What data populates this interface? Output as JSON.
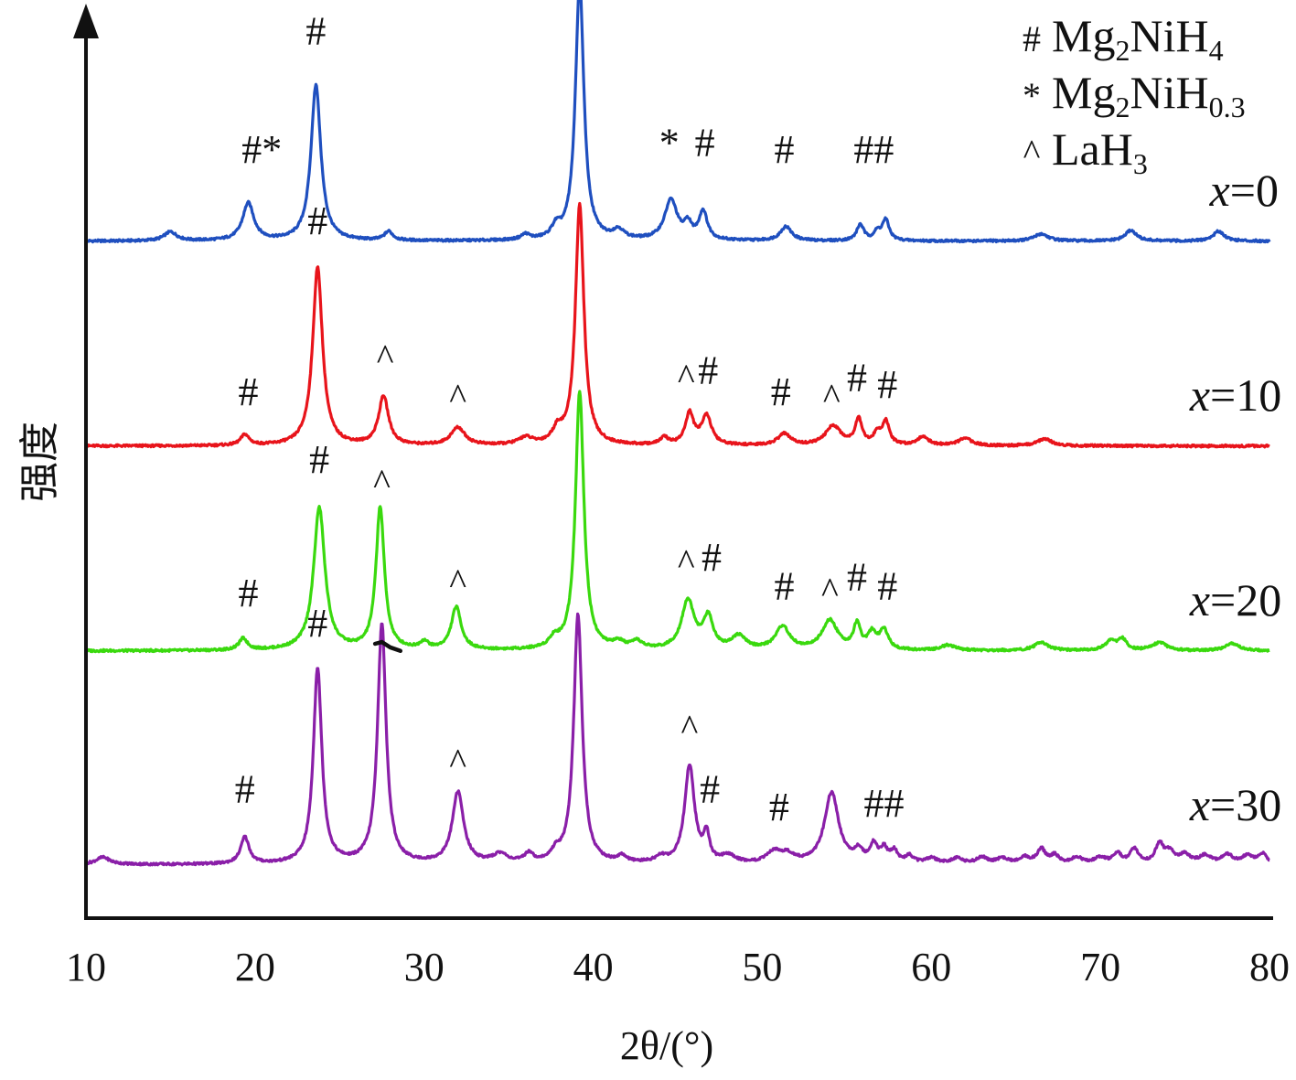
{
  "chart_data": {
    "type": "line",
    "title": "",
    "xlabel": "2θ/(°)",
    "ylabel": "强度",
    "xlim": [
      10,
      80
    ],
    "xticks": [
      10,
      20,
      30,
      40,
      50,
      60,
      70,
      80
    ],
    "ylim": [
      0,
      100
    ],
    "grid": false,
    "legend_position": "top-right",
    "legend": [
      {
        "symbol": "#",
        "label": "Mg2NiH4",
        "parts": [
          "Mg",
          "2",
          "NiH",
          "4"
        ]
      },
      {
        "symbol": "*",
        "label": "Mg2NiH0.3",
        "parts": [
          "Mg",
          "2",
          "NiH",
          "0.3"
        ]
      },
      {
        "symbol": "^",
        "label": "LaH3",
        "parts": [
          "LaH",
          "3",
          "",
          ""
        ]
      }
    ],
    "series": [
      {
        "name": "x=0",
        "label_italic": "x",
        "label_rest": "=0",
        "color": "#1f4fbf",
        "peaks": [
          [
            15.0,
            1.0,
            0.45
          ],
          [
            19.6,
            4.2,
            0.4
          ],
          [
            23.6,
            17.5,
            0.35
          ],
          [
            27.9,
            1.0,
            0.3
          ],
          [
            36.0,
            0.6,
            0.3
          ],
          [
            37.8,
            1.2,
            0.3
          ],
          [
            39.2,
            29.0,
            0.3
          ],
          [
            41.5,
            1.0,
            0.4
          ],
          [
            44.6,
            4.5,
            0.45
          ],
          [
            45.6,
            1.6,
            0.25
          ],
          [
            46.5,
            3.2,
            0.3
          ],
          [
            51.4,
            1.6,
            0.4
          ],
          [
            55.8,
            1.8,
            0.25
          ],
          [
            56.8,
            0.9,
            0.25
          ],
          [
            57.3,
            2.3,
            0.25
          ],
          [
            66.5,
            0.8,
            0.5
          ],
          [
            71.8,
            1.2,
            0.4
          ],
          [
            77.0,
            1.1,
            0.4
          ]
        ],
        "markers": [
          {
            "text": "#*",
            "x": 20.4,
            "y": 8.8
          },
          {
            "text": "#",
            "x": 23.6,
            "y": 22.1
          },
          {
            "text": "#",
            "x": 38.6,
            "y": 33.6
          },
          {
            "text": "*",
            "x": 44.5,
            "y": 9.6
          },
          {
            "text": "#",
            "x": 46.6,
            "y": 9.6
          },
          {
            "text": "#",
            "x": 51.3,
            "y": 8.8
          },
          {
            "text": "##",
            "x": 56.6,
            "y": 8.8
          }
        ]
      },
      {
        "name": "x=10",
        "label_italic": "x",
        "label_rest": "=10",
        "color": "#e8141b",
        "peaks": [
          [
            19.4,
            1.2,
            0.3
          ],
          [
            23.7,
            20.0,
            0.35
          ],
          [
            27.6,
            5.5,
            0.35
          ],
          [
            32.0,
            2.0,
            0.5
          ],
          [
            36.0,
            0.8,
            0.5
          ],
          [
            37.9,
            1.5,
            0.35
          ],
          [
            39.2,
            27.0,
            0.3
          ],
          [
            44.2,
            0.8,
            0.3
          ],
          [
            45.7,
            3.5,
            0.3
          ],
          [
            46.7,
            3.3,
            0.35
          ],
          [
            51.3,
            1.3,
            0.45
          ],
          [
            54.2,
            2.2,
            0.55
          ],
          [
            55.7,
            2.9,
            0.25
          ],
          [
            56.8,
            1.2,
            0.25
          ],
          [
            57.3,
            2.6,
            0.25
          ],
          [
            59.5,
            1.0,
            0.4
          ],
          [
            62.0,
            0.8,
            0.5
          ],
          [
            66.7,
            0.8,
            0.5
          ]
        ],
        "markers": [
          {
            "text": "#",
            "x": 19.6,
            "y": 4.6
          },
          {
            "text": "#",
            "x": 23.7,
            "y": 23.8
          },
          {
            "text": "^",
            "x": 27.7,
            "y": 8.6
          },
          {
            "text": "^",
            "x": 32.0,
            "y": 4.2
          },
          {
            "text": "^",
            "x": 45.5,
            "y": 6.4
          },
          {
            "text": "#",
            "x": 46.8,
            "y": 7.0
          },
          {
            "text": "#",
            "x": 51.1,
            "y": 4.6
          },
          {
            "text": "^",
            "x": 54.1,
            "y": 4.2
          },
          {
            "text": "#",
            "x": 55.6,
            "y": 6.2
          },
          {
            "text": "#",
            "x": 57.4,
            "y": 5.4
          }
        ]
      },
      {
        "name": "x=20",
        "label_italic": "x",
        "label_rest": "=20",
        "color": "#3ad90e",
        "peaks": [
          [
            19.3,
            1.3,
            0.3
          ],
          [
            23.8,
            16.0,
            0.4
          ],
          [
            27.4,
            16.0,
            0.3
          ],
          [
            30.0,
            0.8,
            0.3
          ],
          [
            31.9,
            4.8,
            0.35
          ],
          [
            37.7,
            1.0,
            0.35
          ],
          [
            39.2,
            29.0,
            0.3
          ],
          [
            41.5,
            0.7,
            0.4
          ],
          [
            42.6,
            0.8,
            0.4
          ],
          [
            45.6,
            5.5,
            0.45
          ],
          [
            46.8,
            3.5,
            0.35
          ],
          [
            48.6,
            1.5,
            0.5
          ],
          [
            51.2,
            2.6,
            0.5
          ],
          [
            54.0,
            3.3,
            0.55
          ],
          [
            55.6,
            2.7,
            0.25
          ],
          [
            56.5,
            1.8,
            0.3
          ],
          [
            57.2,
            2.2,
            0.3
          ],
          [
            61.0,
            0.6,
            0.5
          ],
          [
            66.5,
            0.9,
            0.5
          ],
          [
            70.6,
            1.0,
            0.4
          ],
          [
            71.3,
            1.2,
            0.3
          ],
          [
            73.5,
            0.9,
            0.5
          ],
          [
            77.8,
            0.8,
            0.5
          ]
        ],
        "markers": [
          {
            "text": "#",
            "x": 19.6,
            "y": 5.0
          },
          {
            "text": "#",
            "x": 23.8,
            "y": 20.0
          },
          {
            "text": "^",
            "x": 27.5,
            "y": 17.6
          },
          {
            "text": "^",
            "x": 32.0,
            "y": 6.4
          },
          {
            "text": "^",
            "x": 45.5,
            "y": 8.6
          },
          {
            "text": "#",
            "x": 47.0,
            "y": 9.0
          },
          {
            "text": "#",
            "x": 51.3,
            "y": 5.8
          },
          {
            "text": "^",
            "x": 54.0,
            "y": 5.4
          },
          {
            "text": "#",
            "x": 55.6,
            "y": 6.8
          },
          {
            "text": "#",
            "x": 57.4,
            "y": 5.8
          }
        ]
      },
      {
        "name": "x=30",
        "label_italic": "x",
        "label_rest": "=30",
        "color": "#8a1fa8",
        "peaks": [
          [
            11.0,
            0.8,
            0.5
          ],
          [
            19.4,
            3.0,
            0.3
          ],
          [
            23.7,
            22.0,
            0.3
          ],
          [
            27.5,
            27.0,
            0.3
          ],
          [
            32.0,
            8.0,
            0.4
          ],
          [
            34.5,
            1.0,
            0.5
          ],
          [
            36.2,
            1.0,
            0.3
          ],
          [
            37.8,
            1.0,
            0.3
          ],
          [
            39.1,
            28.0,
            0.3
          ],
          [
            41.7,
            0.7,
            0.3
          ],
          [
            44.0,
            0.6,
            0.4
          ],
          [
            45.7,
            11.0,
            0.35
          ],
          [
            46.7,
            3.0,
            0.2
          ],
          [
            48.0,
            0.8,
            0.5
          ],
          [
            50.7,
            1.2,
            0.5
          ],
          [
            51.5,
            0.9,
            0.5
          ],
          [
            54.1,
            8.0,
            0.5
          ],
          [
            55.7,
            1.3,
            0.3
          ],
          [
            56.6,
            2.0,
            0.25
          ],
          [
            57.2,
            1.5,
            0.25
          ],
          [
            57.8,
            1.3,
            0.25
          ],
          [
            58.7,
            0.8,
            0.3
          ],
          [
            60.0,
            0.6,
            0.4
          ],
          [
            61.5,
            0.6,
            0.4
          ],
          [
            63.0,
            0.7,
            0.4
          ],
          [
            64.2,
            0.6,
            0.4
          ],
          [
            65.5,
            0.7,
            0.4
          ],
          [
            66.5,
            1.6,
            0.3
          ],
          [
            67.3,
            0.9,
            0.3
          ],
          [
            68.6,
            0.7,
            0.4
          ],
          [
            70.0,
            0.7,
            0.4
          ],
          [
            71.0,
            1.1,
            0.3
          ],
          [
            72.0,
            1.6,
            0.3
          ],
          [
            73.5,
            2.2,
            0.3
          ],
          [
            74.1,
            1.2,
            0.3
          ],
          [
            75.0,
            1.0,
            0.4
          ],
          [
            76.2,
            0.9,
            0.4
          ],
          [
            77.5,
            1.0,
            0.4
          ],
          [
            78.7,
            0.9,
            0.4
          ],
          [
            79.6,
            1.1,
            0.3
          ]
        ],
        "markers": [
          {
            "text": "#",
            "x": 19.4,
            "y": 7.0
          },
          {
            "text": "#",
            "x": 23.7,
            "y": 25.6
          },
          {
            "text": "^",
            "x": 32.0,
            "y": 10.2
          },
          {
            "text": "^",
            "x": 45.7,
            "y": 14.0
          },
          {
            "text": "#",
            "x": 46.9,
            "y": 7.0
          },
          {
            "text": "#",
            "x": 51.0,
            "y": 5.0
          },
          {
            "text": "##",
            "x": 57.2,
            "y": 5.4
          }
        ]
      }
    ],
    "series_offsets": [
      76,
      53,
      30,
      6
    ],
    "series_label_positions": [
      {
        "x": 78.5,
        "y": 80
      },
      {
        "x": 78.0,
        "y": 57
      },
      {
        "x": 78.0,
        "y": 34
      },
      {
        "x": 78.0,
        "y": 11
      }
    ],
    "annotation_segments": [
      {
        "name": "overlap-mark",
        "color": "#111111",
        "points": [
          [
            27.1,
            30.8
          ],
          [
            27.5,
            31.0
          ],
          [
            28.0,
            30.4
          ],
          [
            28.6,
            30.0
          ]
        ]
      }
    ]
  }
}
